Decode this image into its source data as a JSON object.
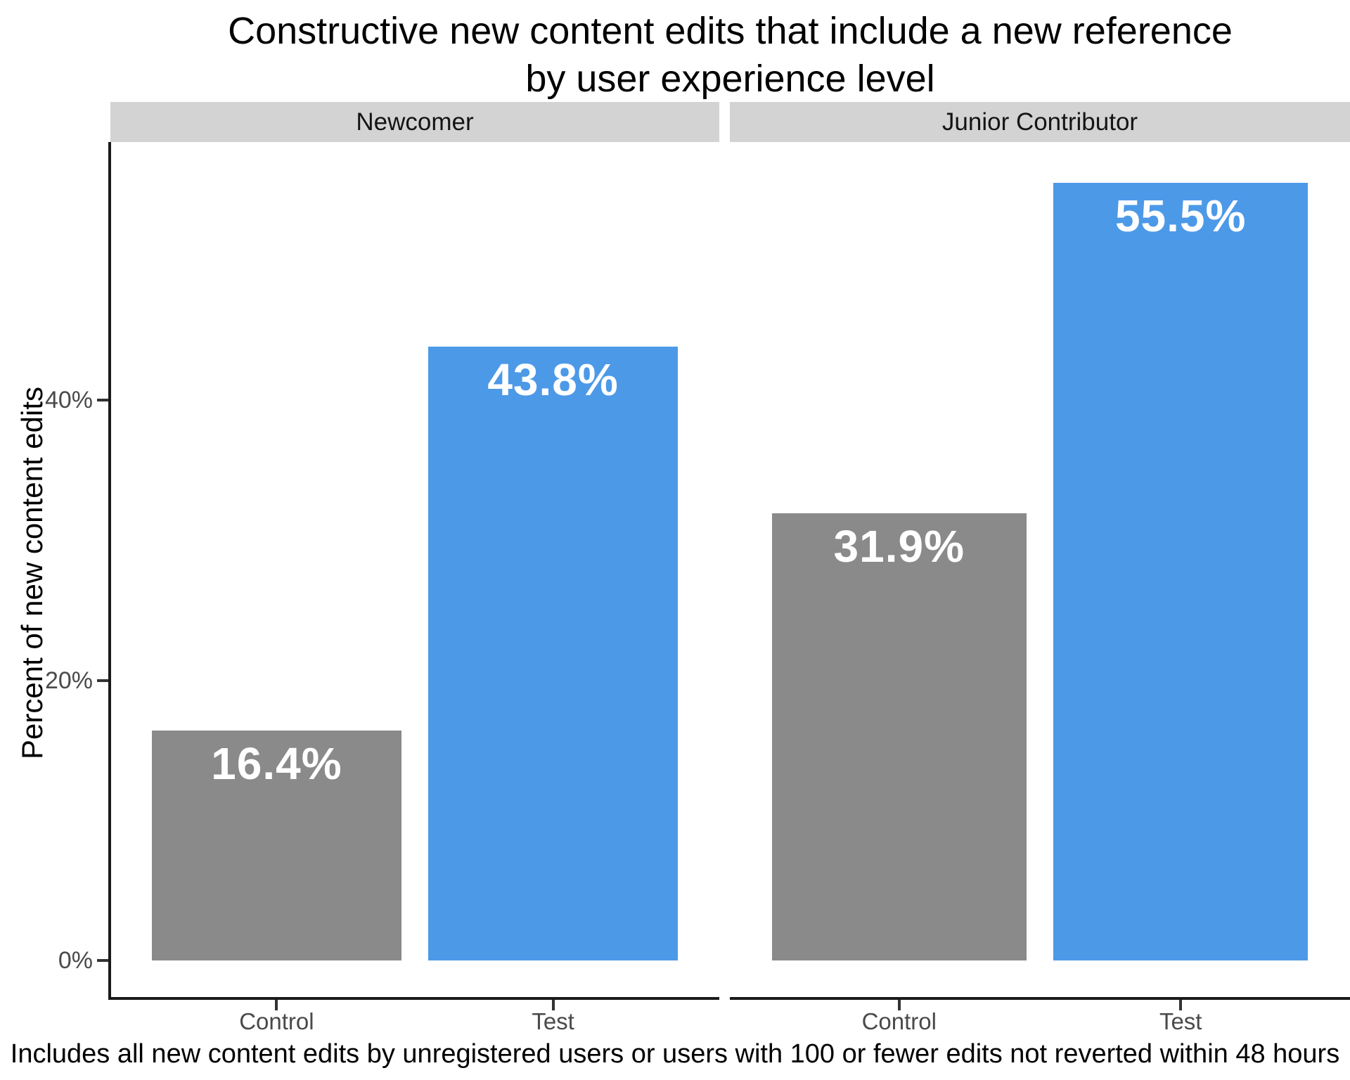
{
  "title": "Constructive new content edits that include a new reference\nby user experience level",
  "y_axis": {
    "label": "Percent of new content edits",
    "ticks": [
      {
        "label": "0%",
        "value": 0
      },
      {
        "label": "20%",
        "value": 20
      },
      {
        "label": "40%",
        "value": 40
      }
    ]
  },
  "caption": "Includes all new content edits by unregistered users or users with 100 or fewer edits not reverted within 48 hours",
  "colors": {
    "control_bar": "#8A8A8A",
    "test_bar": "#4C99E8",
    "strip_bg": "#D3D3D3",
    "axis_line": "#1A1A1A",
    "tick_label": "#4A4A4A",
    "bar_label": "#FFFFFF"
  },
  "chart_data": {
    "type": "bar",
    "title": "Constructive new content edits that include a new reference by user experience level",
    "xlabel": "",
    "ylabel": "Percent of new content edits",
    "ylim": [
      0,
      61.2
    ],
    "unit": "percent",
    "grid": false,
    "legend": "none",
    "categories": [
      "Control",
      "Test"
    ],
    "facets": [
      {
        "label": "Newcomer",
        "values": [
          {
            "category": "Control",
            "value": 16.4,
            "label": "16.4%",
            "color_key": "control_bar"
          },
          {
            "category": "Test",
            "value": 43.8,
            "label": "43.8%",
            "color_key": "test_bar"
          }
        ]
      },
      {
        "label": "Junior Contributor",
        "values": [
          {
            "category": "Control",
            "value": 31.9,
            "label": "31.9%",
            "color_key": "control_bar"
          },
          {
            "category": "Test",
            "value": 55.5,
            "label": "55.5%",
            "color_key": "test_bar"
          }
        ]
      }
    ]
  }
}
